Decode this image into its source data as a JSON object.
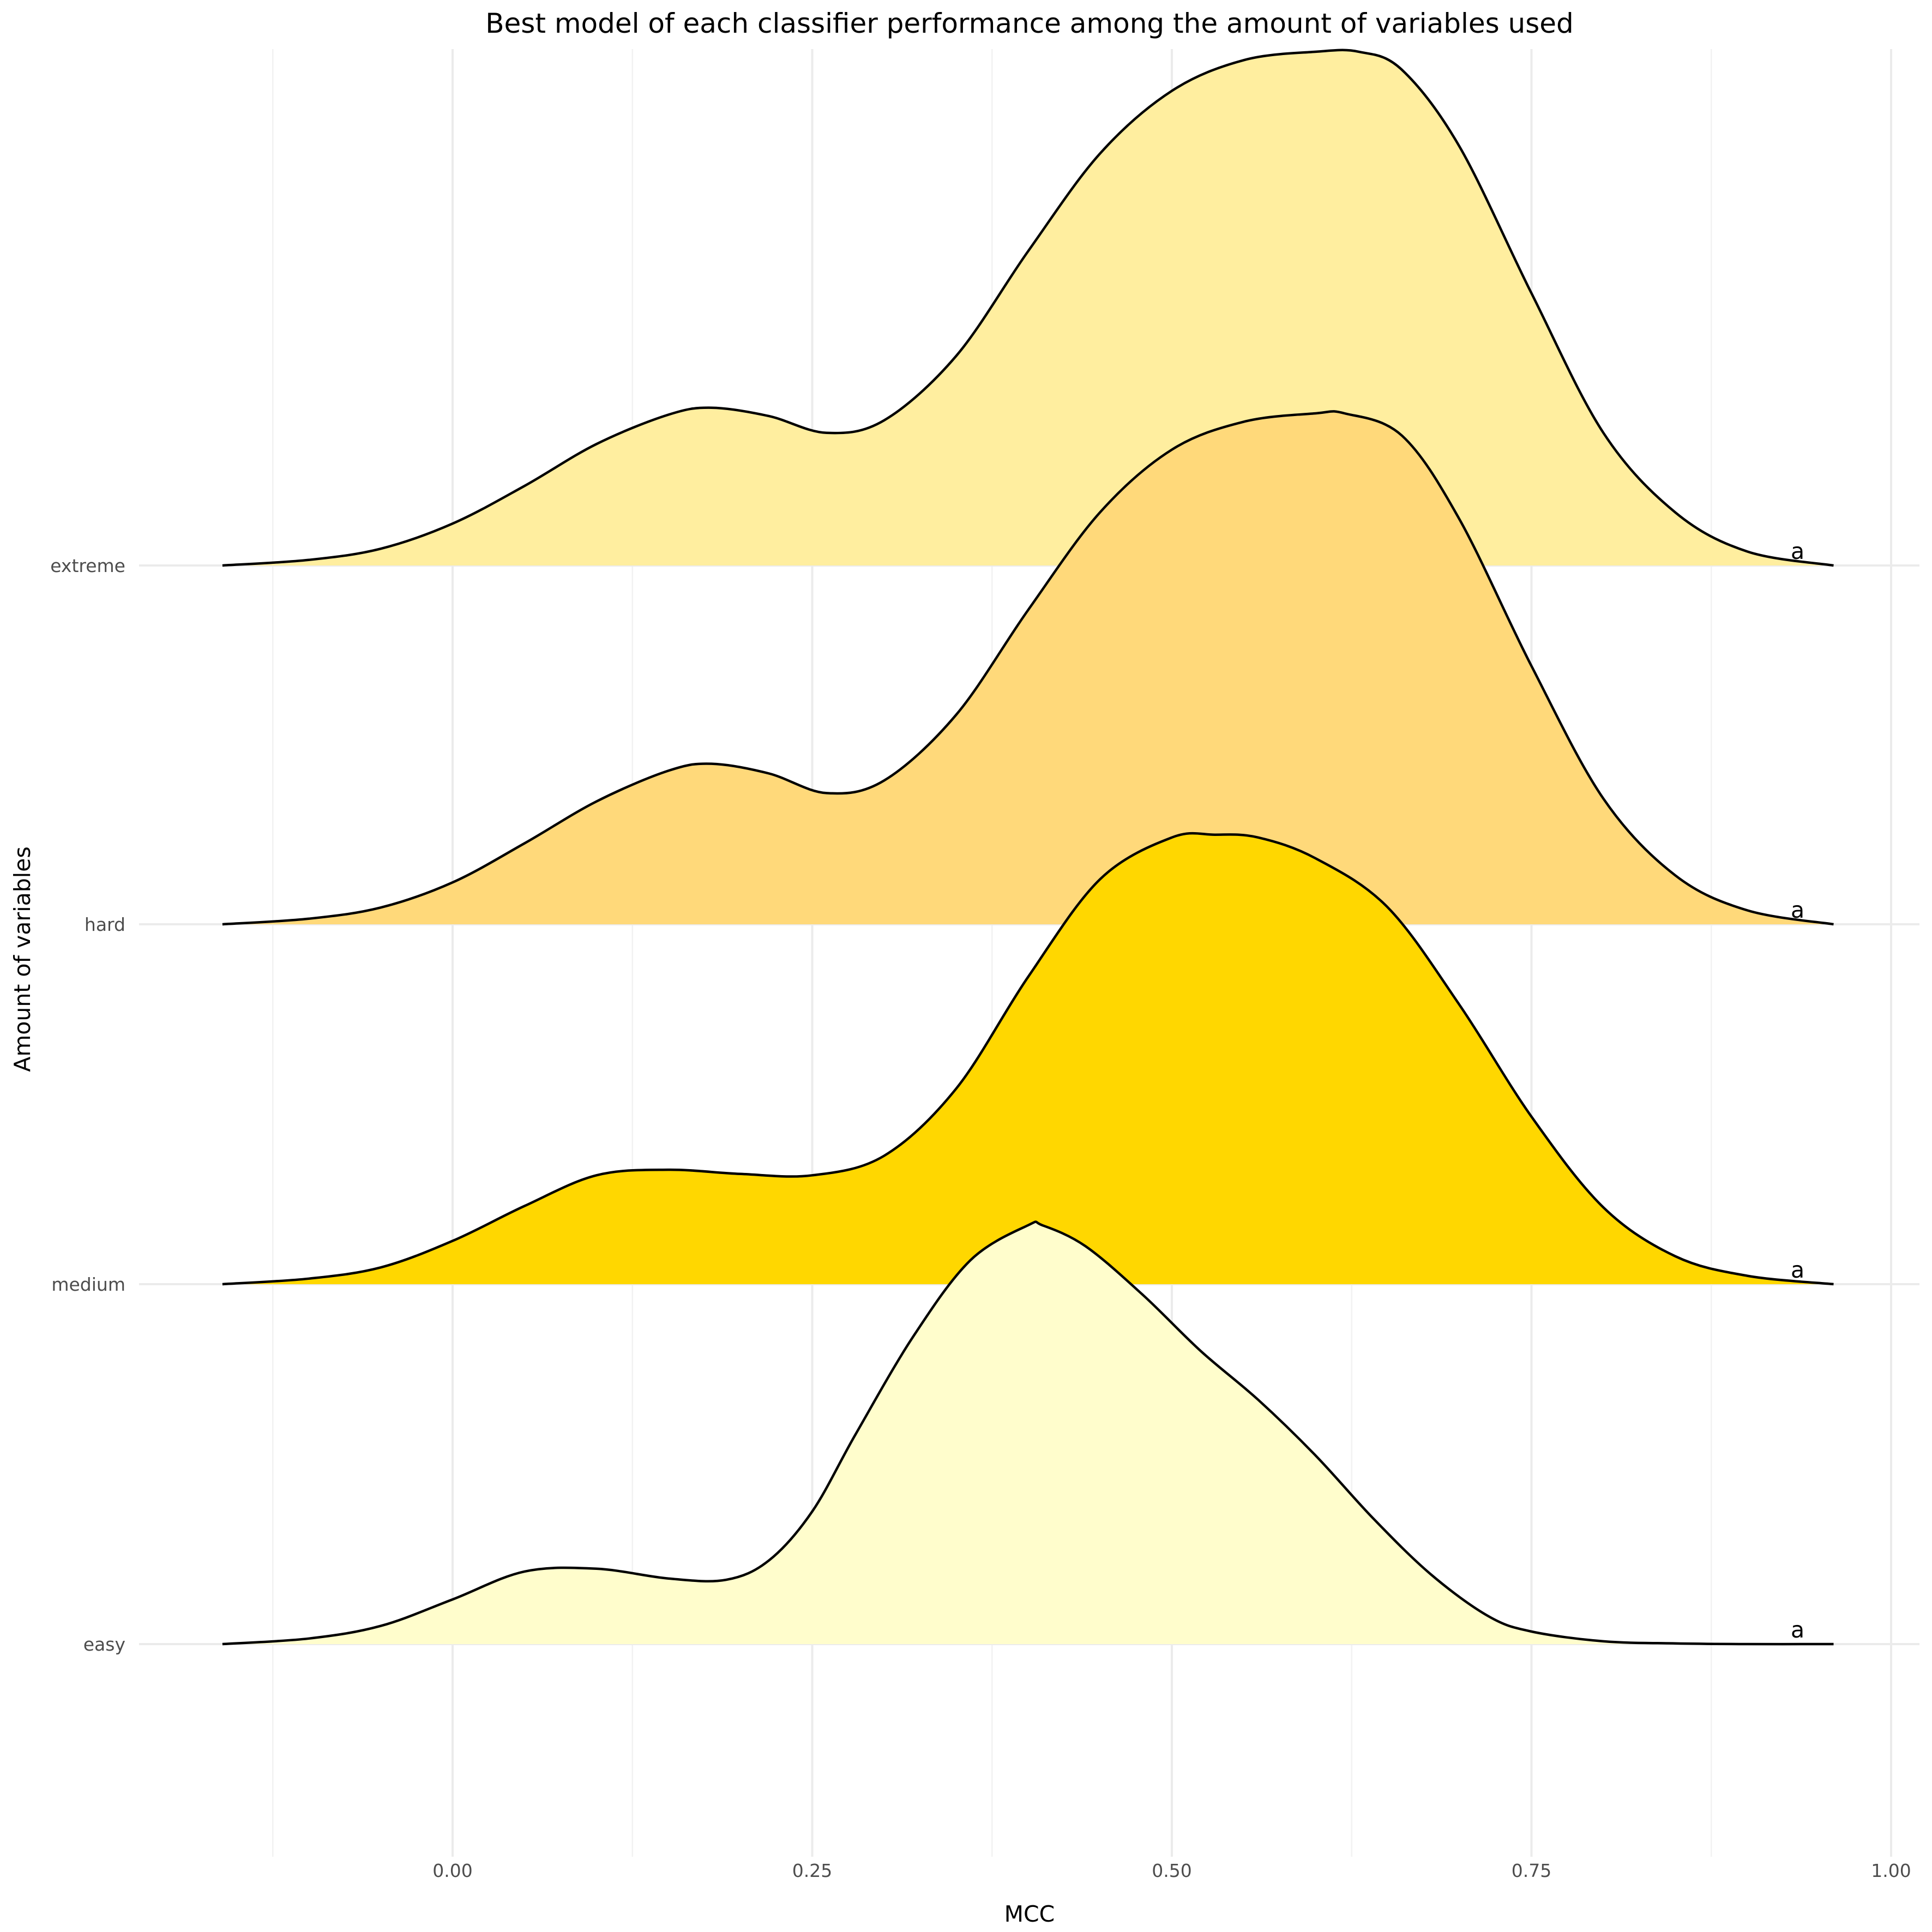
{
  "chart_data": {
    "type": "ridgeline",
    "title": "Best model of each classifier performance among the amount of variables used",
    "xlabel": "MCC",
    "ylabel": "Amount of variables",
    "xlim": [
      -0.19,
      1.01
    ],
    "x_ticks": [
      "0.00",
      "0.25",
      "0.50",
      "0.75",
      "1.00"
    ],
    "x_tick_values": [
      0,
      0.25,
      0.5,
      0.75,
      1.0
    ],
    "x_minor_tick_values": [
      -0.125,
      0.125,
      0.375,
      0.625,
      0.875
    ],
    "grid": true,
    "legend": "none",
    "categories": [
      "easy",
      "medium",
      "hard",
      "extreme"
    ],
    "series": [
      {
        "name": "easy",
        "color": "#FFFDCC",
        "annotation": "a",
        "x": [
          -0.16,
          -0.1,
          -0.05,
          0.0,
          0.05,
          0.1,
          0.15,
          0.19,
          0.22,
          0.25,
          0.28,
          0.32,
          0.36,
          0.4,
          0.41,
          0.44,
          0.48,
          0.52,
          0.56,
          0.6,
          0.64,
          0.68,
          0.72,
          0.75,
          0.8,
          0.85,
          0.9,
          0.96
        ],
        "y": [
          0.0,
          0.04,
          0.13,
          0.32,
          0.52,
          0.54,
          0.47,
          0.46,
          0.6,
          0.95,
          1.5,
          2.2,
          2.75,
          3.0,
          3.0,
          2.85,
          2.5,
          2.1,
          1.75,
          1.35,
          0.9,
          0.5,
          0.2,
          0.09,
          0.02,
          0.005,
          0.0,
          0.0
        ]
      },
      {
        "name": "medium",
        "color": "#FFD700",
        "annotation": "a",
        "x": [
          -0.16,
          -0.1,
          -0.05,
          0.0,
          0.05,
          0.1,
          0.15,
          0.2,
          0.25,
          0.3,
          0.35,
          0.4,
          0.45,
          0.5,
          0.53,
          0.56,
          0.6,
          0.65,
          0.7,
          0.75,
          0.8,
          0.85,
          0.9,
          0.96
        ],
        "y": [
          0.0,
          0.04,
          0.12,
          0.31,
          0.56,
          0.78,
          0.82,
          0.79,
          0.78,
          0.92,
          1.4,
          2.2,
          2.9,
          3.2,
          3.22,
          3.2,
          3.05,
          2.7,
          2.0,
          1.2,
          0.55,
          0.2,
          0.06,
          0.0
        ]
      },
      {
        "name": "hard",
        "color": "#FFD97A",
        "annotation": "a",
        "x": [
          -0.16,
          -0.1,
          -0.05,
          0.0,
          0.05,
          0.1,
          0.15,
          0.18,
          0.22,
          0.26,
          0.3,
          0.35,
          0.4,
          0.45,
          0.5,
          0.55,
          0.6,
          0.62,
          0.66,
          0.7,
          0.75,
          0.8,
          0.85,
          0.9,
          0.96
        ],
        "y": [
          0.0,
          0.04,
          0.12,
          0.3,
          0.58,
          0.88,
          1.1,
          1.15,
          1.08,
          0.94,
          1.03,
          1.5,
          2.25,
          2.95,
          3.4,
          3.6,
          3.66,
          3.66,
          3.5,
          2.9,
          1.85,
          0.9,
          0.35,
          0.1,
          0.0
        ]
      },
      {
        "name": "extreme",
        "color": "#FFEE9F",
        "annotation": "a",
        "x": [
          -0.16,
          -0.1,
          -0.05,
          0.0,
          0.05,
          0.1,
          0.15,
          0.18,
          0.22,
          0.26,
          0.3,
          0.35,
          0.4,
          0.45,
          0.5,
          0.55,
          0.6,
          0.63,
          0.66,
          0.7,
          0.75,
          0.8,
          0.85,
          0.9,
          0.96
        ],
        "y": [
          0.0,
          0.04,
          0.12,
          0.3,
          0.57,
          0.87,
          1.08,
          1.13,
          1.07,
          0.95,
          1.04,
          1.5,
          2.25,
          2.95,
          3.4,
          3.62,
          3.68,
          3.68,
          3.55,
          3.0,
          1.95,
          0.95,
          0.38,
          0.1,
          0.0
        ]
      }
    ]
  }
}
